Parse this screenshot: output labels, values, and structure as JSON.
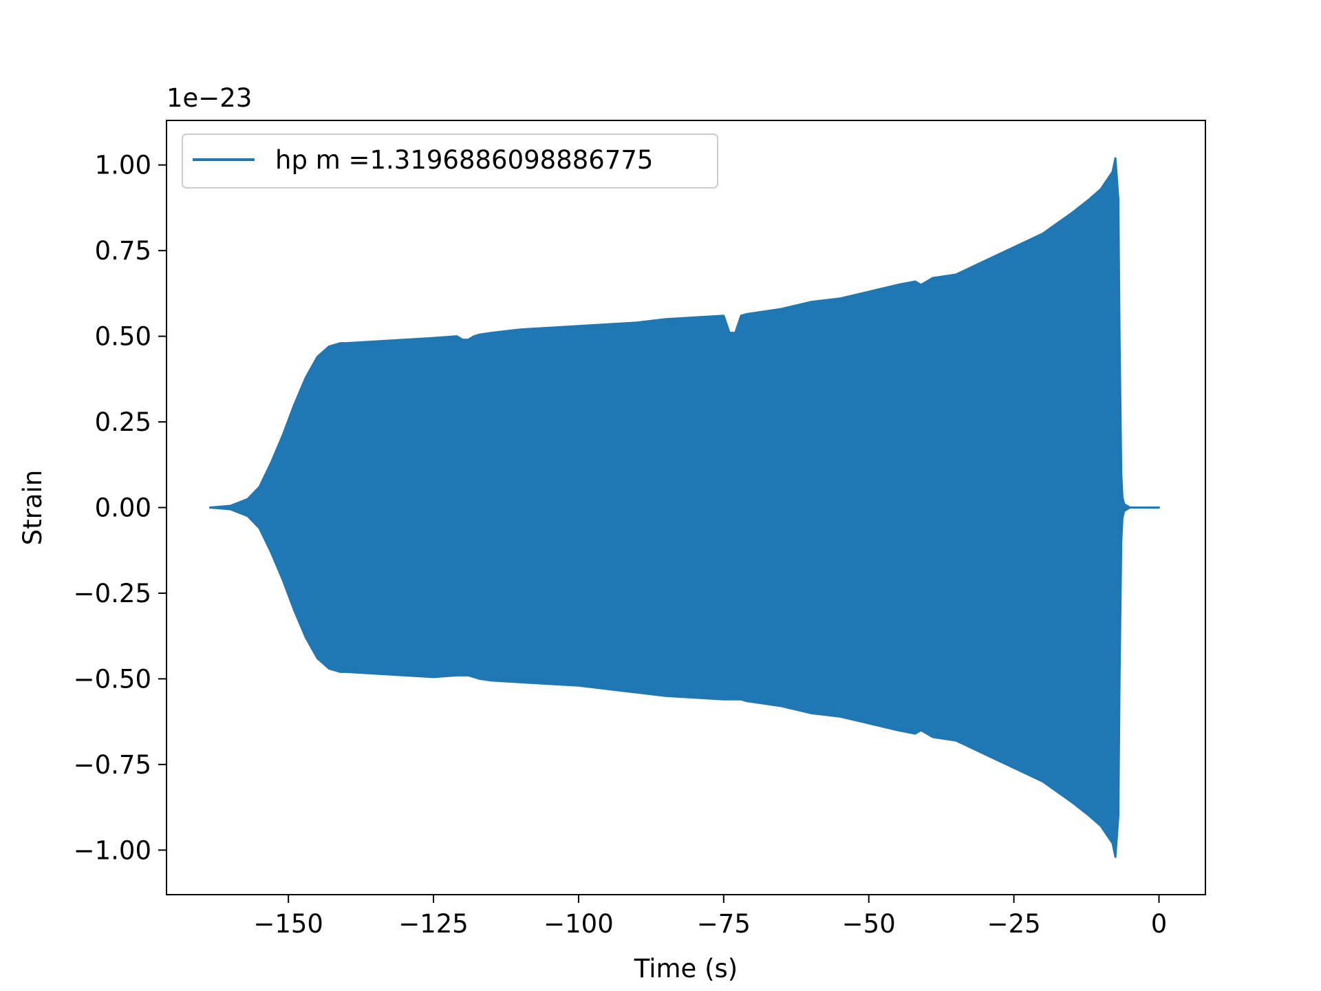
{
  "chart_data": {
    "type": "area",
    "title": "",
    "xlabel": "Time (s)",
    "ylabel": "Strain",
    "y_offset_label": "1e−23",
    "xlim": [
      -171,
      8
    ],
    "ylim": [
      -1.13,
      1.13
    ],
    "xticks": [
      -150,
      -125,
      -100,
      -75,
      -50,
      -25,
      0
    ],
    "xtick_labels": [
      "−150",
      "−125",
      "−100",
      "−75",
      "−50",
      "−25",
      "0"
    ],
    "yticks": [
      1.0,
      0.75,
      0.5,
      0.25,
      0.0,
      -0.25,
      -0.5,
      -0.75,
      -1.0
    ],
    "ytick_labels": [
      "1.00",
      "0.75",
      "0.50",
      "0.25",
      "0.00",
      "−0.25",
      "−0.50",
      "−0.75",
      "−1.00"
    ],
    "grid": false,
    "legend": {
      "position": "upper left"
    },
    "series": [
      {
        "name": "hp m =1.3196886098886775",
        "color": "#1f77b4",
        "x": [
          -163.5,
          -160,
          -157,
          -155,
          -153,
          -151,
          -149,
          -147,
          -145,
          -143,
          -141,
          -140,
          -135,
          -130,
          -125,
          -121,
          -120,
          -119,
          -118,
          -117,
          -115,
          -110,
          -105,
          -100,
          -95,
          -90,
          -85,
          -80,
          -75,
          -74,
          -73,
          -72,
          -71,
          -65,
          -60,
          -55,
          -50,
          -45,
          -42,
          -41,
          -40,
          -39,
          -35,
          -30,
          -25,
          -20,
          -15,
          -12,
          -10,
          -8,
          -7.5,
          -7,
          -6.8,
          -6.5,
          -6.3,
          -6,
          -5,
          -3,
          0
        ],
        "upper": [
          0.0,
          0.005,
          0.025,
          0.06,
          0.13,
          0.21,
          0.3,
          0.38,
          0.44,
          0.47,
          0.48,
          0.48,
          0.485,
          0.49,
          0.495,
          0.5,
          0.49,
          0.49,
          0.5,
          0.505,
          0.51,
          0.52,
          0.525,
          0.53,
          0.535,
          0.54,
          0.55,
          0.555,
          0.56,
          0.51,
          0.51,
          0.56,
          0.565,
          0.58,
          0.6,
          0.61,
          0.63,
          0.65,
          0.66,
          0.65,
          0.66,
          0.67,
          0.68,
          0.72,
          0.76,
          0.8,
          0.86,
          0.9,
          0.93,
          0.98,
          1.02,
          0.9,
          0.5,
          0.1,
          0.03,
          0.01,
          0.0,
          0.0,
          0.0
        ],
        "lower": [
          0.0,
          -0.005,
          -0.025,
          -0.06,
          -0.13,
          -0.21,
          -0.3,
          -0.38,
          -0.44,
          -0.47,
          -0.48,
          -0.48,
          -0.485,
          -0.49,
          -0.495,
          -0.49,
          -0.49,
          -0.49,
          -0.495,
          -0.5,
          -0.505,
          -0.51,
          -0.515,
          -0.52,
          -0.53,
          -0.54,
          -0.55,
          -0.555,
          -0.56,
          -0.56,
          -0.56,
          -0.56,
          -0.565,
          -0.58,
          -0.6,
          -0.61,
          -0.63,
          -0.65,
          -0.66,
          -0.65,
          -0.66,
          -0.67,
          -0.68,
          -0.72,
          -0.76,
          -0.8,
          -0.86,
          -0.9,
          -0.93,
          -0.98,
          -1.02,
          -0.9,
          -0.5,
          -0.1,
          -0.03,
          -0.01,
          0.0,
          0.0,
          0.0
        ]
      }
    ]
  }
}
